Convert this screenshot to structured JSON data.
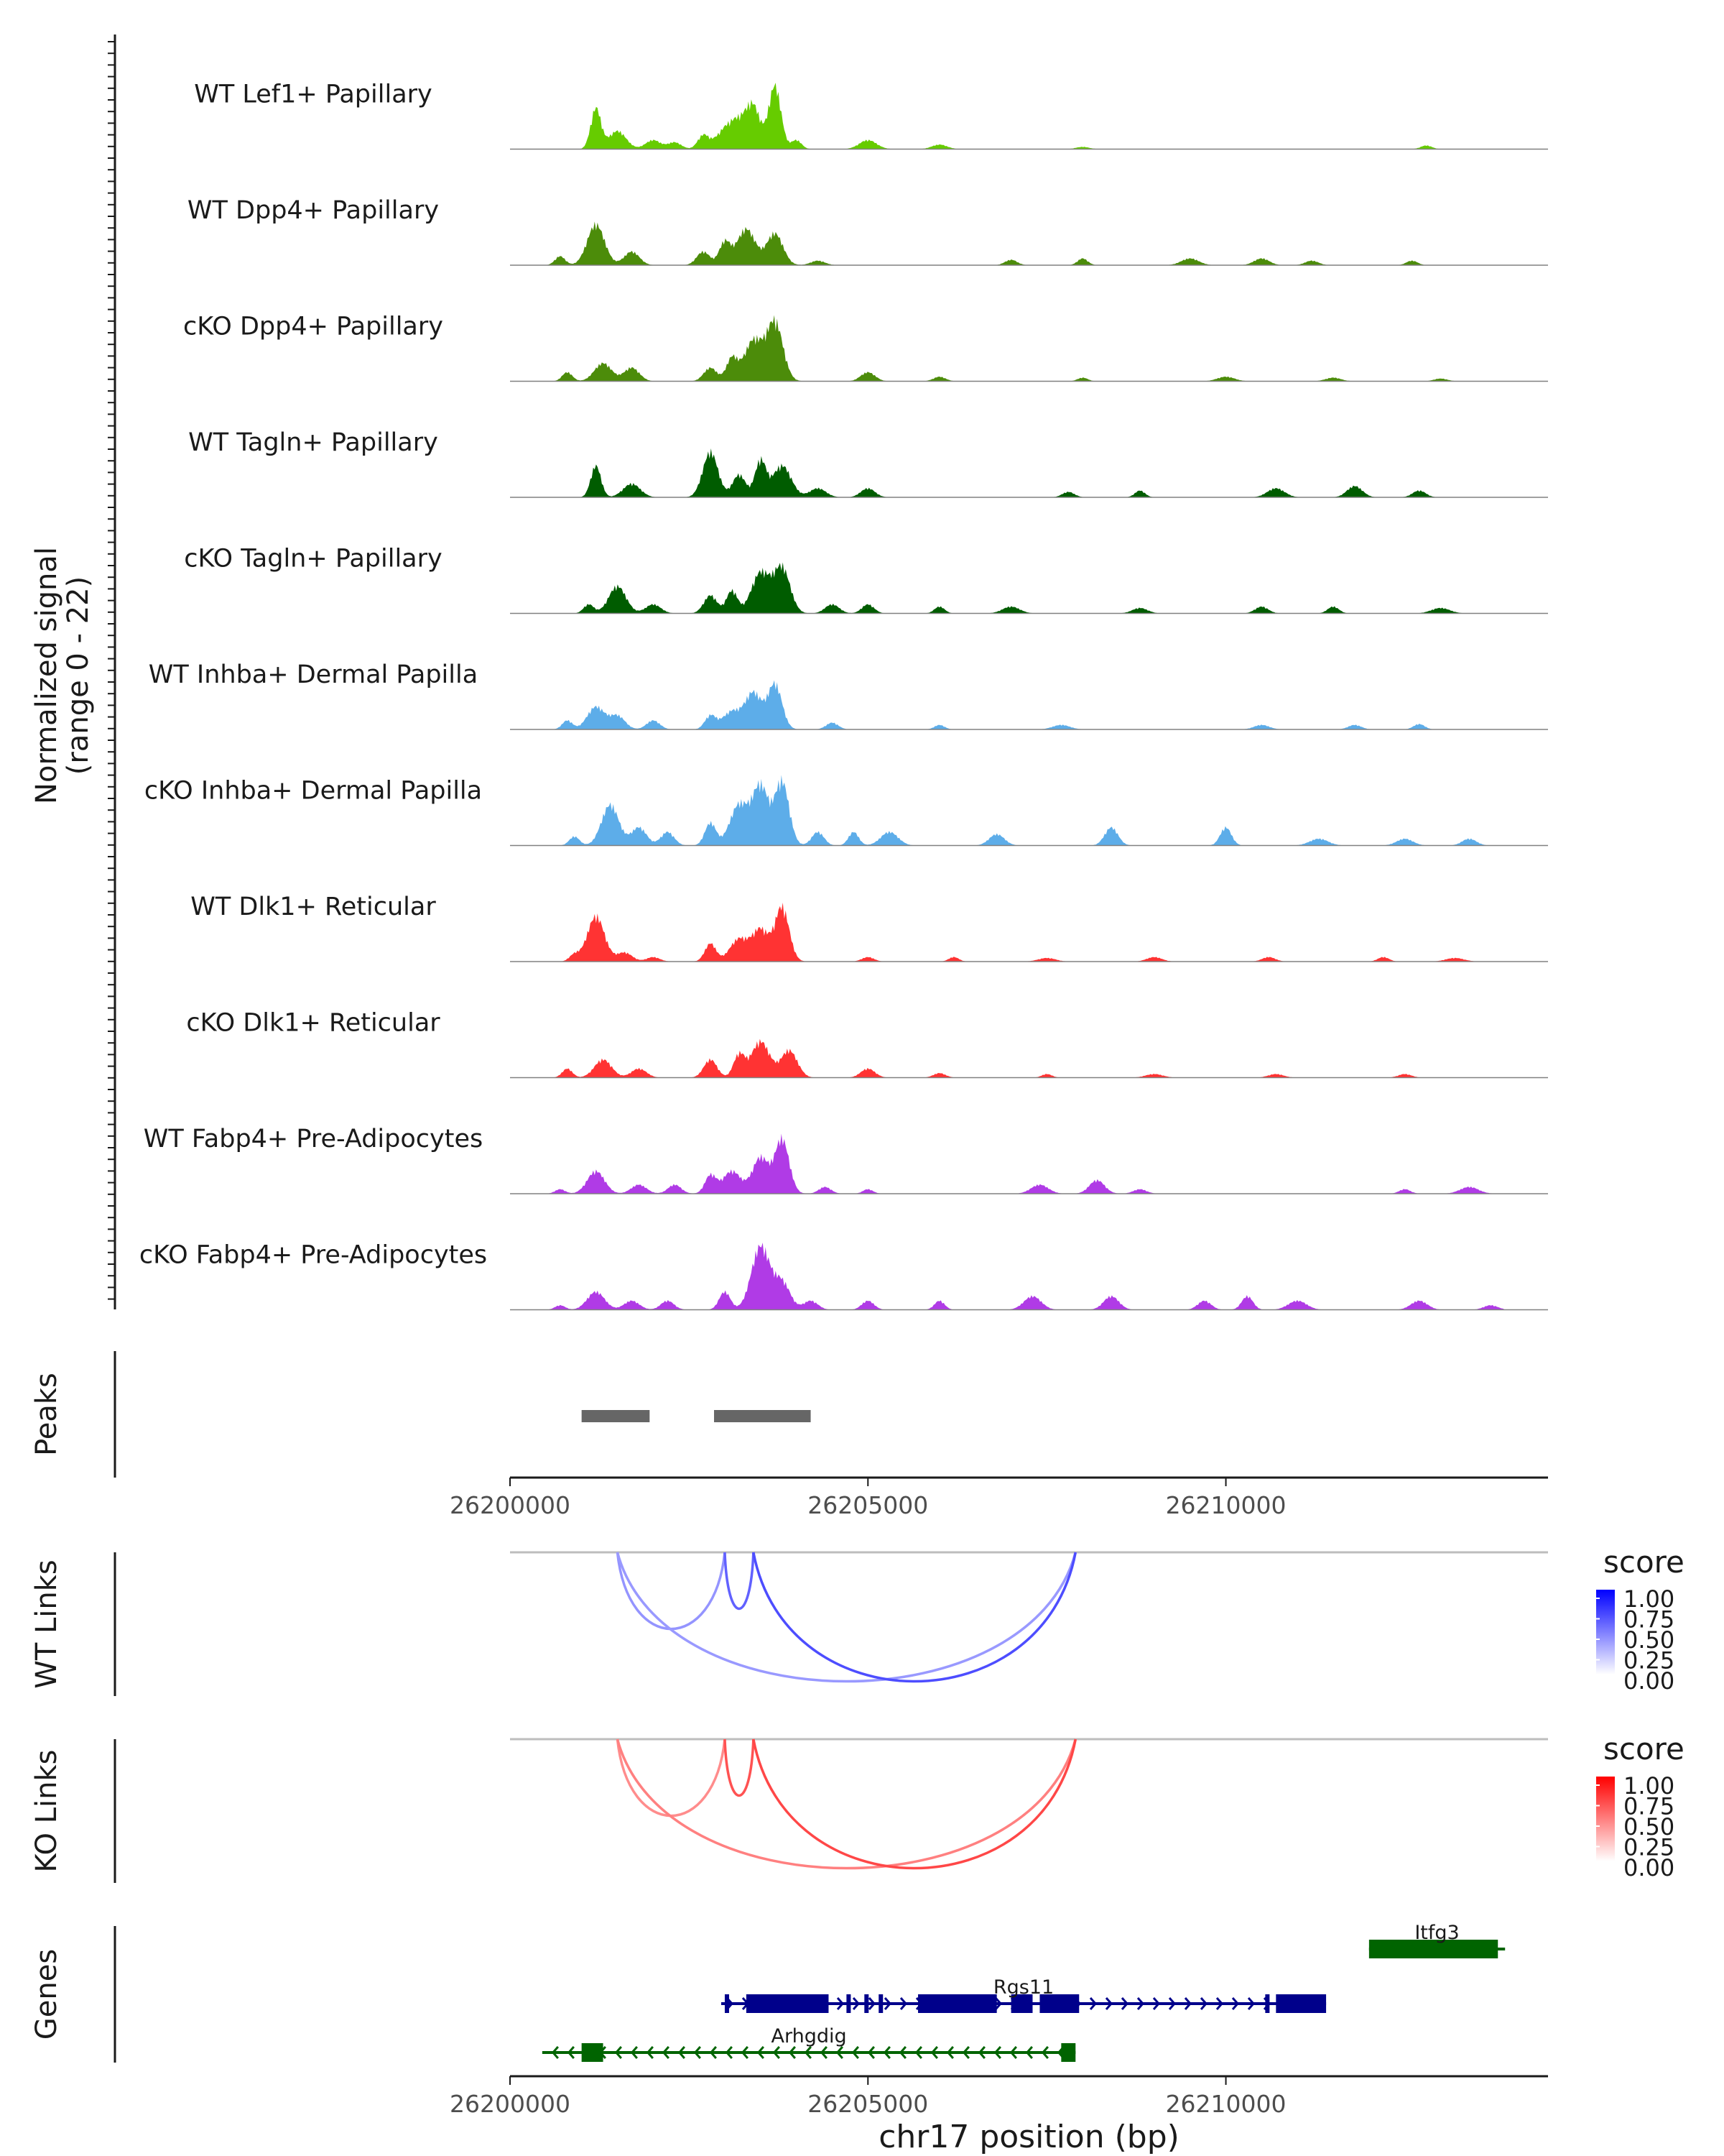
{
  "chart_data": {
    "type": "area",
    "title": "",
    "region": {
      "chrom": "chr17",
      "start": 26200000,
      "end": 26214500
    },
    "y_label_line1": "Normalized signal",
    "y_label_line2": "(range 0 - 22)",
    "ylim": [
      0,
      22
    ],
    "x_ticks": [
      26200000,
      26205000,
      26210000
    ],
    "x_tick_labels": [
      "26200000",
      "26205000",
      "26210000"
    ],
    "x_label": "chr17 position (bp)",
    "coverage": [
      {
        "name": "WT Lef1+ Papillary",
        "color": "#66CC00",
        "peaks": [
          [
            26201200,
            9
          ],
          [
            26201500,
            4
          ],
          [
            26202000,
            2
          ],
          [
            26202300,
            1.5
          ],
          [
            26202700,
            3
          ],
          [
            26203000,
            4
          ],
          [
            26203200,
            5
          ],
          [
            26203400,
            9
          ],
          [
            26203700,
            14
          ],
          [
            26204000,
            2
          ],
          [
            26205000,
            2
          ],
          [
            26206000,
            1
          ],
          [
            26208000,
            0.5
          ],
          [
            26212800,
            0.8
          ]
        ]
      },
      {
        "name": "WT Dpp4+ Papillary",
        "color": "#4C8C0A",
        "peaks": [
          [
            26200700,
            2
          ],
          [
            26201200,
            9
          ],
          [
            26201700,
            3
          ],
          [
            26202700,
            3
          ],
          [
            26203000,
            5
          ],
          [
            26203300,
            8
          ],
          [
            26203700,
            7
          ],
          [
            26204300,
            1
          ],
          [
            26207000,
            1.2
          ],
          [
            26208000,
            1.5
          ],
          [
            26209500,
            1.5
          ],
          [
            26210500,
            1.5
          ],
          [
            26211200,
            1
          ],
          [
            26212600,
            1
          ]
        ]
      },
      {
        "name": "cKO Dpp4+ Papillary",
        "color": "#4C8C0A",
        "peaks": [
          [
            26200800,
            2
          ],
          [
            26201300,
            4
          ],
          [
            26201700,
            3
          ],
          [
            26202800,
            3
          ],
          [
            26203100,
            5
          ],
          [
            26203400,
            9
          ],
          [
            26203700,
            13
          ],
          [
            26205000,
            2
          ],
          [
            26206000,
            1
          ],
          [
            26208000,
            0.8
          ],
          [
            26210000,
            1
          ],
          [
            26211500,
            0.8
          ],
          [
            26213000,
            0.6
          ]
        ]
      },
      {
        "name": "WT Tagln+ Papillary",
        "color": "#005C00",
        "peaks": [
          [
            26201200,
            7
          ],
          [
            26201700,
            3
          ],
          [
            26202800,
            10
          ],
          [
            26203200,
            5
          ],
          [
            26203500,
            8
          ],
          [
            26203800,
            7
          ],
          [
            26204300,
            2
          ],
          [
            26205000,
            2
          ],
          [
            26207800,
            1.2
          ],
          [
            26208800,
            1.5
          ],
          [
            26210700,
            2
          ],
          [
            26211800,
            2.5
          ],
          [
            26212700,
            1.5
          ]
        ]
      },
      {
        "name": "cKO Tagln+ Papillary",
        "color": "#005C00",
        "peaks": [
          [
            26201100,
            2
          ],
          [
            26201500,
            6
          ],
          [
            26202000,
            2
          ],
          [
            26202800,
            4
          ],
          [
            26203100,
            5
          ],
          [
            26203500,
            9
          ],
          [
            26203800,
            10
          ],
          [
            26204500,
            2
          ],
          [
            26205000,
            2
          ],
          [
            26206000,
            1.5
          ],
          [
            26207000,
            1.5
          ],
          [
            26208800,
            1.2
          ],
          [
            26210500,
            1.5
          ],
          [
            26211500,
            1.5
          ],
          [
            26213000,
            1.2
          ]
        ]
      },
      {
        "name": "WT Inhba+ Dermal Papilla",
        "color": "#5DADE9",
        "peaks": [
          [
            26200800,
            2
          ],
          [
            26201200,
            5
          ],
          [
            26201500,
            3
          ],
          [
            26202000,
            2
          ],
          [
            26202800,
            3
          ],
          [
            26203100,
            4
          ],
          [
            26203400,
            8
          ],
          [
            26203700,
            10
          ],
          [
            26204500,
            1.5
          ],
          [
            26206000,
            1
          ],
          [
            26207700,
            1
          ],
          [
            26210500,
            1
          ],
          [
            26211800,
            1
          ],
          [
            26212700,
            1.2
          ]
        ]
      },
      {
        "name": "cKO Inhba+ Dermal Papilla",
        "color": "#5DADE9",
        "peaks": [
          [
            26200900,
            2
          ],
          [
            26201400,
            9
          ],
          [
            26201800,
            4
          ],
          [
            26202200,
            3
          ],
          [
            26202800,
            5
          ],
          [
            26203200,
            9
          ],
          [
            26203500,
            13
          ],
          [
            26203800,
            14
          ],
          [
            26204300,
            3
          ],
          [
            26204800,
            3
          ],
          [
            26205300,
            3
          ],
          [
            26206800,
            2.5
          ],
          [
            26208400,
            4
          ],
          [
            26210000,
            4
          ],
          [
            26211300,
            1.5
          ],
          [
            26212500,
            1.5
          ],
          [
            26213400,
            1.5
          ]
        ]
      },
      {
        "name": "WT Dlk1+ Reticular",
        "color": "#FF3333",
        "peaks": [
          [
            26200900,
            1.5
          ],
          [
            26201200,
            10
          ],
          [
            26201600,
            2
          ],
          [
            26202000,
            1
          ],
          [
            26202800,
            4
          ],
          [
            26203200,
            5
          ],
          [
            26203500,
            7
          ],
          [
            26203800,
            12
          ],
          [
            26205000,
            1
          ],
          [
            26206200,
            1
          ],
          [
            26207500,
            0.8
          ],
          [
            26209000,
            1
          ],
          [
            26210600,
            1
          ],
          [
            26212200,
            1
          ],
          [
            26213200,
            0.8
          ]
        ]
      },
      {
        "name": "cKO Dlk1+ Reticular",
        "color": "#FF3333",
        "peaks": [
          [
            26200800,
            2
          ],
          [
            26201300,
            4
          ],
          [
            26201800,
            2
          ],
          [
            26202800,
            4
          ],
          [
            26203200,
            5
          ],
          [
            26203500,
            8
          ],
          [
            26203900,
            6
          ],
          [
            26205000,
            2
          ],
          [
            26206000,
            1
          ],
          [
            26207500,
            0.8
          ],
          [
            26209000,
            0.8
          ],
          [
            26210700,
            0.8
          ],
          [
            26212500,
            0.8
          ]
        ]
      },
      {
        "name": "WT Fabp4+ Pre-Adipocytes",
        "color": "#B03BE6",
        "peaks": [
          [
            26200700,
            1
          ],
          [
            26201200,
            5
          ],
          [
            26201800,
            2
          ],
          [
            26202300,
            2
          ],
          [
            26202800,
            4
          ],
          [
            26203100,
            5
          ],
          [
            26203500,
            8
          ],
          [
            26203800,
            12
          ],
          [
            26204400,
            1.5
          ],
          [
            26205000,
            1
          ],
          [
            26207400,
            2
          ],
          [
            26208200,
            3
          ],
          [
            26208800,
            1
          ],
          [
            26212500,
            1
          ],
          [
            26213400,
            1.5
          ]
        ]
      },
      {
        "name": "cKO Fabp4+ Pre-Adipocytes",
        "color": "#B03BE6",
        "peaks": [
          [
            26200700,
            1
          ],
          [
            26201200,
            4
          ],
          [
            26201700,
            2
          ],
          [
            26202200,
            2
          ],
          [
            26203000,
            4
          ],
          [
            26203500,
            14
          ],
          [
            26203800,
            6
          ],
          [
            26204200,
            2
          ],
          [
            26205000,
            2
          ],
          [
            26206000,
            2
          ],
          [
            26207300,
            3
          ],
          [
            26208400,
            3
          ],
          [
            26209700,
            2
          ],
          [
            26210300,
            3
          ],
          [
            26211000,
            2
          ],
          [
            26212700,
            2
          ],
          [
            26213700,
            1
          ]
        ]
      }
    ],
    "peaks_track": {
      "label": "Peaks",
      "color": "#666666",
      "regions": [
        [
          26201000,
          26201950
        ],
        [
          26202850,
          26204200
        ]
      ]
    },
    "link_tracks": [
      {
        "label": "WT Links",
        "low_color": "#FFFFFF",
        "high_color": "#0000FF",
        "legend_title": "score",
        "legend_ticks": [
          "1.00",
          "0.75",
          "0.50",
          "0.25",
          "0.00"
        ],
        "links": [
          {
            "start": 26201500,
            "end": 26203000,
            "score": 0.42
          },
          {
            "start": 26201500,
            "end": 26207900,
            "score": 0.4
          },
          {
            "start": 26203000,
            "end": 26203400,
            "score": 0.62
          },
          {
            "start": 26203400,
            "end": 26207900,
            "score": 0.7
          }
        ]
      },
      {
        "label": "KO Links",
        "low_color": "#FFFFFF",
        "high_color": "#FF0000",
        "legend_title": "score",
        "legend_ticks": [
          "1.00",
          "0.75",
          "0.50",
          "0.25",
          "0.00"
        ],
        "links": [
          {
            "start": 26201500,
            "end": 26203000,
            "score": 0.45
          },
          {
            "start": 26201500,
            "end": 26207900,
            "score": 0.5
          },
          {
            "start": 26203000,
            "end": 26203400,
            "score": 0.68
          },
          {
            "start": 26203400,
            "end": 26207900,
            "score": 0.72
          }
        ]
      }
    ],
    "genes_track": {
      "label": "Genes",
      "genes": [
        {
          "name": "Itfg3",
          "strand": "+",
          "color": "#006400",
          "start": 26212000,
          "end": 26213900,
          "exons": [
            [
              26212000,
              26213800
            ]
          ]
        },
        {
          "name": "Rgs11",
          "strand": "+",
          "color": "#00008B",
          "start": 26202950,
          "end": 26211400,
          "exons": [
            [
              26203000,
              26203050
            ],
            [
              26203300,
              26204450
            ],
            [
              26204700,
              26204750
            ],
            [
              26204950,
              26205000
            ],
            [
              26205150,
              26205200
            ],
            [
              26205700,
              26206800
            ],
            [
              26207000,
              26207300
            ],
            [
              26207400,
              26207950
            ],
            [
              26210550,
              26210600
            ],
            [
              26210700,
              26211400
            ]
          ]
        },
        {
          "name": "Arhgdig",
          "strand": "-",
          "color": "#006400",
          "start": 26200450,
          "end": 26207900,
          "exons": [
            [
              26201000,
              26201300
            ],
            [
              26207700,
              26207900
            ]
          ]
        }
      ]
    }
  }
}
